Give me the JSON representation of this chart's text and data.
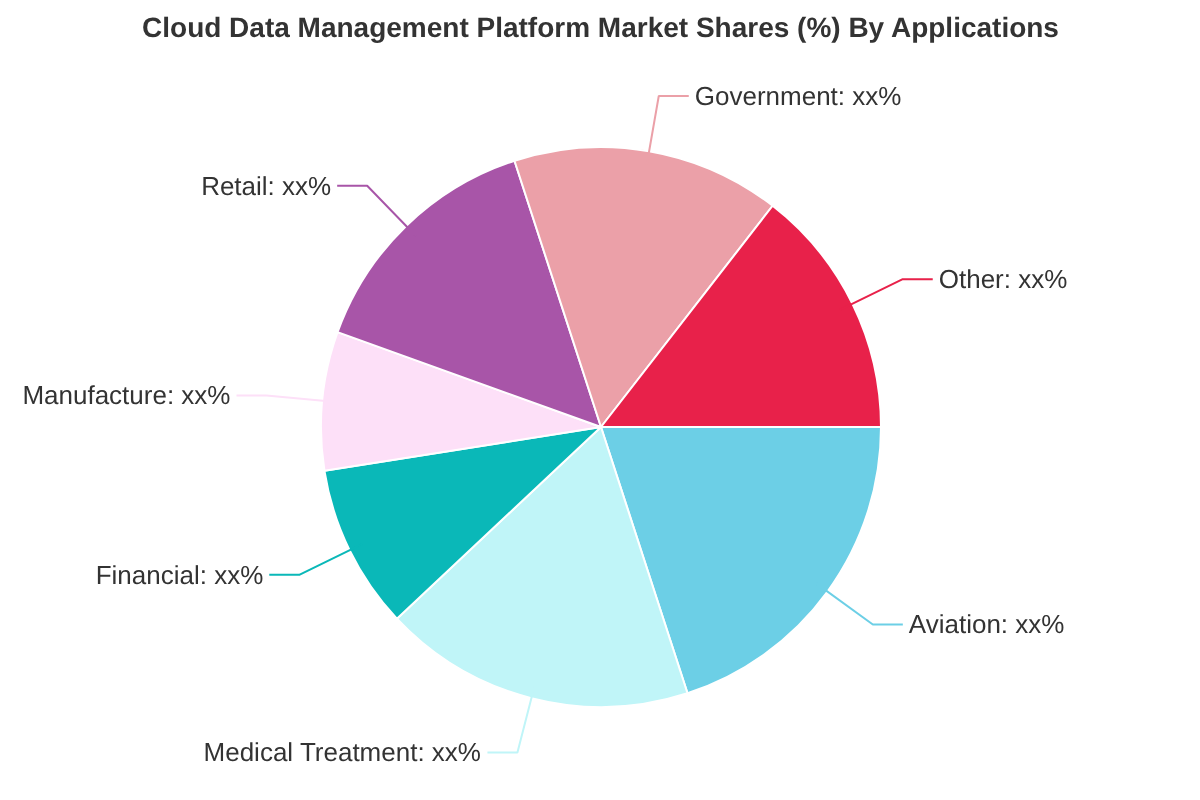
{
  "chart_data": {
    "type": "pie",
    "title": "Cloud Data Management Platform Market Shares (%) By Applications",
    "categories": [
      "Aviation",
      "Medical Treatment",
      "Financial",
      "Manufacture",
      "Retail",
      "Government",
      "Other"
    ],
    "values": [
      20,
      18,
      9.5,
      8,
      14.5,
      15.5,
      14.5
    ],
    "value_labels": [
      "xx%",
      "xx%",
      "xx%",
      "xx%",
      "xx%",
      "xx%",
      "xx%"
    ],
    "colors": [
      "#6ccfe6",
      "#c0f5f8",
      "#0ab8b8",
      "#fde0f8",
      "#a855a8",
      "#eba0a8",
      "#e8214a"
    ]
  }
}
